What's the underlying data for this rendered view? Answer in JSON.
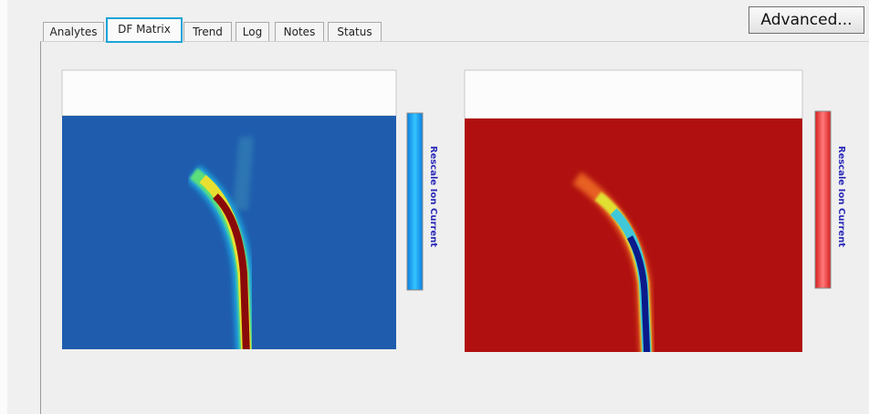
{
  "tabs": [
    {
      "label": "Analytes"
    },
    {
      "label": "DF Matrix"
    },
    {
      "label": "Trend"
    },
    {
      "label": "Log"
    },
    {
      "label": "Notes"
    },
    {
      "label": "Status"
    }
  ],
  "advanced_button": {
    "label": "Advanced..."
  },
  "panels": [
    {
      "colorbar_label": "Rescale Ion Current"
    },
    {
      "colorbar_label": "Rescale Ion Current"
    }
  ]
}
